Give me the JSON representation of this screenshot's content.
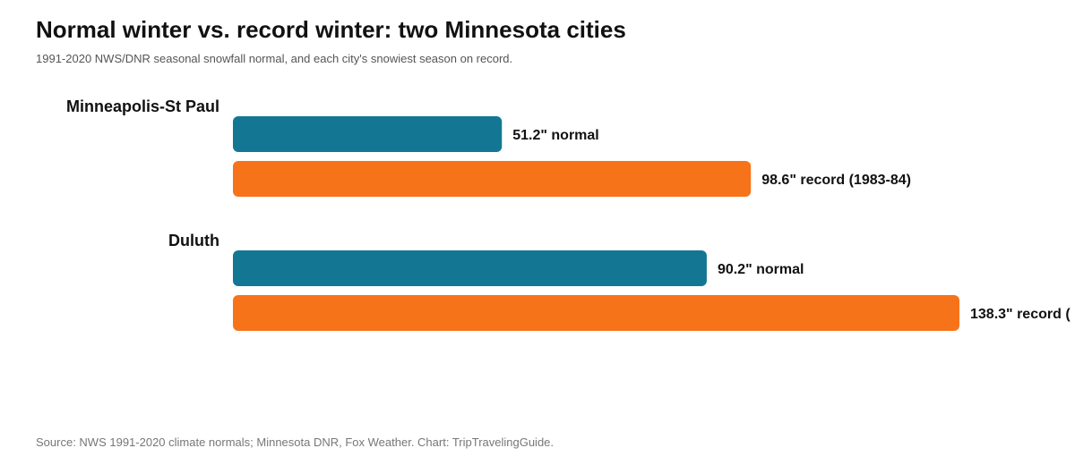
{
  "title": "Normal winter vs. record winter: two Minnesota cities",
  "subtitle": "1991-2020 NWS/DNR seasonal snowfall normal, and each city's snowiest season on record.",
  "source": "Source: NWS 1991-2020 climate normals; Minnesota DNR, Fox Weather. Chart: TripTravelingGuide.",
  "chart_data": {
    "type": "bar",
    "orientation": "horizontal",
    "unit": "inches",
    "categories": [
      "Minneapolis-St Paul",
      "Duluth"
    ],
    "series": [
      {
        "key": "normal",
        "color": "#137793",
        "values": [
          51.2,
          90.2
        ],
        "labels": [
          "51.2\" normal",
          "90.2\" normal"
        ]
      },
      {
        "key": "record",
        "color": "#F7731A",
        "values": [
          98.6,
          138.3
        ],
        "labels": [
          "98.6\" record (1983-84)",
          "138.3\" record ("
        ]
      }
    ],
    "xlim": [
      0,
      138.3
    ],
    "grid": false,
    "legend": "none",
    "axes_visible": false
  }
}
